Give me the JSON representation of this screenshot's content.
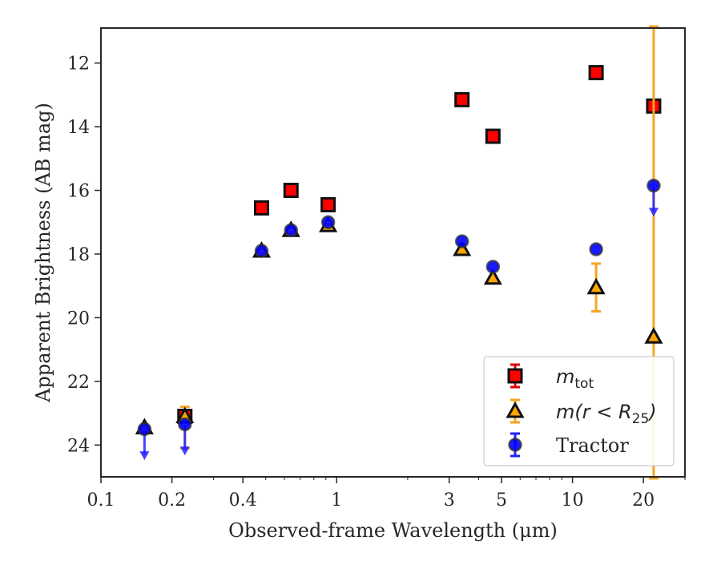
{
  "chart_data": {
    "type": "scatter",
    "xlabel": "Observed-frame Wavelength (μm)",
    "ylabel": "Apparent Brightness (AB mag)",
    "x_scale": "log",
    "y_inverted": true,
    "xlim": [
      0.1,
      30
    ],
    "ylim": [
      25,
      10.9
    ],
    "x_ticks": [
      {
        "value": 0.1,
        "label": "0.1"
      },
      {
        "value": 0.2,
        "label": "0.2"
      },
      {
        "value": 0.4,
        "label": "0.4"
      },
      {
        "value": 1,
        "label": "1"
      },
      {
        "value": 3,
        "label": "3"
      },
      {
        "value": 5,
        "label": "5"
      },
      {
        "value": 10,
        "label": "10"
      },
      {
        "value": 20,
        "label": "20"
      }
    ],
    "y_ticks": [
      {
        "value": 12,
        "label": "12"
      },
      {
        "value": 14,
        "label": "14"
      },
      {
        "value": 16,
        "label": "16"
      },
      {
        "value": 18,
        "label": "18"
      },
      {
        "value": 20,
        "label": "20"
      },
      {
        "value": 22,
        "label": "22"
      },
      {
        "value": 24,
        "label": "24"
      }
    ],
    "legend_position": "lower right",
    "series": [
      {
        "name": "m_tot",
        "legend_main": "m",
        "legend_sub": "tot",
        "marker": "square",
        "color": "#ff0000",
        "errcolor": "#e00000",
        "points": [
          {
            "x": 0.227,
            "y": 23.1
          },
          {
            "x": 0.48,
            "y": 16.55
          },
          {
            "x": 0.64,
            "y": 16.0
          },
          {
            "x": 0.92,
            "y": 16.45
          },
          {
            "x": 3.4,
            "y": 13.15
          },
          {
            "x": 4.6,
            "y": 14.3
          },
          {
            "x": 12.6,
            "y": 12.3
          },
          {
            "x": 22.1,
            "y": 13.35
          }
        ]
      },
      {
        "name": "m(r < R_25)",
        "legend_main": "m(r < R",
        "legend_sub": "25",
        "legend_tail": ")",
        "marker": "triangle",
        "color": "#ffa500",
        "errcolor": "#f5a623",
        "points": [
          {
            "x": 0.153,
            "y": 23.45
          },
          {
            "x": 0.227,
            "y": 23.1,
            "err_low": 1.0,
            "err_high": 0.3
          },
          {
            "x": 0.48,
            "y": 17.9
          },
          {
            "x": 0.64,
            "y": 17.25
          },
          {
            "x": 0.92,
            "y": 17.1
          },
          {
            "x": 3.4,
            "y": 17.85
          },
          {
            "x": 4.6,
            "y": 18.75
          },
          {
            "x": 12.6,
            "y": 19.05,
            "err_low": 0.75,
            "err_high": 0.75
          },
          {
            "x": 22.1,
            "y": 20.6,
            "err_full": true
          }
        ]
      },
      {
        "name": "Tractor",
        "marker": "circle",
        "color": "#0000ff",
        "errcolor": "#2020ff",
        "points": [
          {
            "x": 0.153,
            "y": 23.5,
            "upper_limit": true,
            "arrow_to": 24.4
          },
          {
            "x": 0.227,
            "y": 23.35,
            "upper_limit": true,
            "arrow_to": 24.25
          },
          {
            "x": 0.48,
            "y": 17.9
          },
          {
            "x": 0.64,
            "y": 17.25
          },
          {
            "x": 0.92,
            "y": 17.0
          },
          {
            "x": 3.4,
            "y": 17.6
          },
          {
            "x": 4.6,
            "y": 18.4
          },
          {
            "x": 12.6,
            "y": 17.85
          },
          {
            "x": 22.1,
            "y": 15.85,
            "upper_limit": true,
            "arrow_to": 16.75
          }
        ]
      }
    ]
  }
}
